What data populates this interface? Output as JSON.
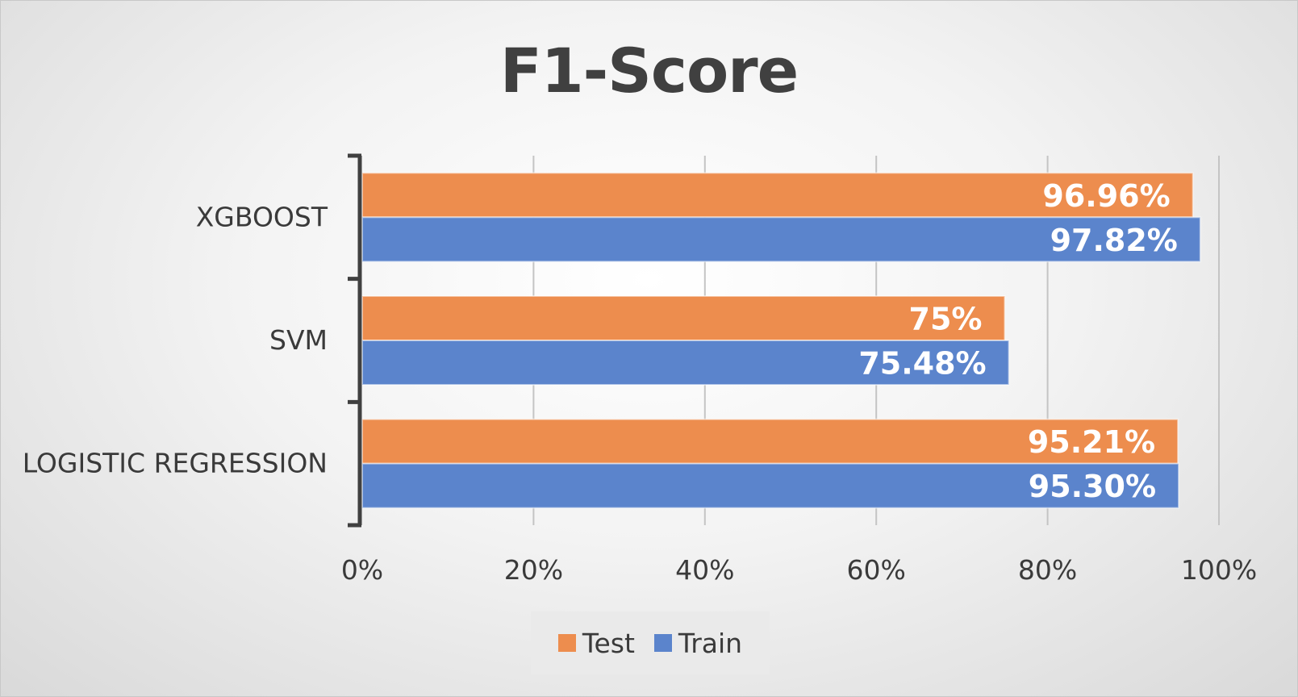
{
  "chart_data": {
    "type": "bar",
    "orientation": "horizontal",
    "title": "F1-Score",
    "categories": [
      "XGBOOST",
      "SVM",
      "LOGISTIC REGRESSION"
    ],
    "series": [
      {
        "name": "Test",
        "color": "#ED8D4E",
        "values": [
          96.96,
          75,
          95.21
        ],
        "labels": [
          "96.96%",
          "75%",
          "95.21%"
        ]
      },
      {
        "name": "Train",
        "color": "#5B84CC",
        "values": [
          97.82,
          75.48,
          95.3
        ],
        "labels": [
          "97.82%",
          "75.48%",
          "95.30%"
        ]
      }
    ],
    "xlim": [
      0,
      100
    ],
    "x_ticks": [
      "0%",
      "20%",
      "40%",
      "60%",
      "80%",
      "100%"
    ],
    "grid": true,
    "legend_position": "bottom"
  }
}
